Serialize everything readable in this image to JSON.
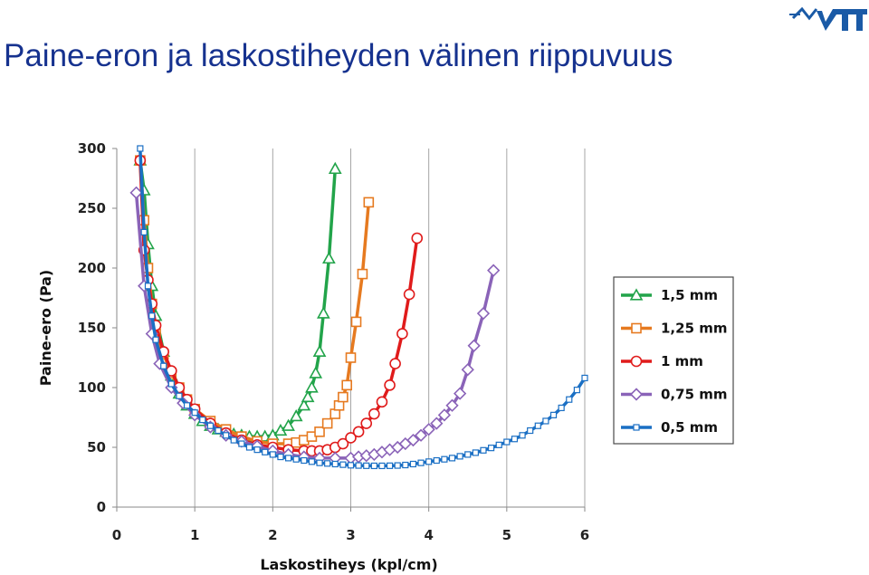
{
  "slide": {
    "title": "Paine-eron ja laskostiheyden välinen riippuvuus"
  },
  "logo": {
    "name": "VTT",
    "color": "#1a5aa6"
  },
  "chart_data": {
    "type": "line",
    "title": "",
    "xlabel": "Laskostiheys (kpl/cm)",
    "ylabel": "Paine-ero (Pa)",
    "xlim": [
      0,
      6
    ],
    "ylim": [
      0,
      300
    ],
    "xticks": [
      0,
      1,
      2,
      3,
      4,
      5,
      6
    ],
    "yticks": [
      0,
      50,
      100,
      150,
      200,
      250,
      300
    ],
    "grid": "vertical",
    "legend_position": "right",
    "series": [
      {
        "name": "1,5 mm",
        "color": "#22a44a",
        "marker": "triangle",
        "x": [
          0.3,
          0.35,
          0.4,
          0.45,
          0.5,
          0.6,
          0.7,
          0.8,
          0.9,
          1.0,
          1.1,
          1.2,
          1.3,
          1.4,
          1.5,
          1.6,
          1.7,
          1.8,
          1.9,
          2.0,
          2.1,
          2.2,
          2.3,
          2.4,
          2.45,
          2.5,
          2.55,
          2.6,
          2.65,
          2.72,
          2.8
        ],
        "y": [
          290,
          265,
          220,
          185,
          160,
          130,
          110,
          95,
          85,
          78,
          72,
          68,
          65,
          63,
          61,
          60,
          59,
          59,
          59,
          60,
          64,
          68,
          76,
          85,
          92,
          100,
          112,
          130,
          162,
          208,
          283
        ]
      },
      {
        "name": "1,25 mm",
        "color": "#e67a20",
        "marker": "square",
        "x": [
          0.3,
          0.35,
          0.4,
          0.45,
          0.5,
          0.6,
          0.7,
          0.8,
          0.9,
          1.0,
          1.2,
          1.4,
          1.6,
          1.8,
          2.0,
          2.2,
          2.3,
          2.4,
          2.5,
          2.6,
          2.7,
          2.8,
          2.85,
          2.9,
          2.95,
          3.0,
          3.07,
          3.15,
          3.23
        ],
        "y": [
          290,
          240,
          200,
          170,
          145,
          128,
          112,
          100,
          90,
          82,
          72,
          65,
          59,
          55,
          53,
          53,
          54,
          56,
          59,
          63,
          70,
          78,
          85,
          92,
          102,
          125,
          155,
          195,
          255
        ]
      },
      {
        "name": "1 mm",
        "color": "#e01b1b",
        "marker": "circle",
        "x": [
          0.3,
          0.35,
          0.4,
          0.45,
          0.5,
          0.6,
          0.7,
          0.8,
          0.9,
          1.0,
          1.2,
          1.4,
          1.6,
          1.8,
          2.0,
          2.2,
          2.4,
          2.5,
          2.6,
          2.7,
          2.8,
          2.9,
          3.0,
          3.1,
          3.2,
          3.3,
          3.4,
          3.5,
          3.57,
          3.66,
          3.75,
          3.85
        ],
        "y": [
          290,
          215,
          190,
          170,
          152,
          130,
          114,
          100,
          90,
          82,
          70,
          62,
          56,
          52,
          50,
          48,
          47,
          47,
          47,
          48,
          50,
          53,
          58,
          63,
          70,
          78,
          88,
          102,
          120,
          145,
          178,
          225
        ]
      },
      {
        "name": "0,75 mm",
        "color": "#8a63b8",
        "marker": "diamond",
        "x": [
          0.25,
          0.35,
          0.45,
          0.55,
          0.7,
          0.85,
          1.0,
          1.2,
          1.4,
          1.6,
          1.8,
          2.0,
          2.2,
          2.4,
          2.6,
          2.8,
          3.0,
          3.1,
          3.2,
          3.3,
          3.4,
          3.5,
          3.6,
          3.7,
          3.8,
          3.9,
          4.0,
          4.1,
          4.2,
          4.3,
          4.4,
          4.5,
          4.58,
          4.7,
          4.83
        ],
        "y": [
          263,
          185,
          145,
          120,
          100,
          87,
          77,
          67,
          60,
          55,
          51,
          47,
          44,
          42,
          41,
          41,
          41,
          42,
          43,
          44,
          46,
          48,
          50,
          53,
          56,
          60,
          65,
          70,
          77,
          85,
          95,
          115,
          135,
          162,
          198
        ]
      },
      {
        "name": "0,5 mm",
        "color": "#1a6fc4",
        "marker": "smallsquare",
        "x": [
          0.3,
          0.35,
          0.4,
          0.45,
          0.5,
          0.6,
          0.7,
          0.8,
          0.9,
          1.0,
          1.1,
          1.2,
          1.3,
          1.4,
          1.5,
          1.6,
          1.7,
          1.8,
          1.9,
          2.0,
          2.1,
          2.2,
          2.3,
          2.4,
          2.5,
          2.6,
          2.7,
          2.8,
          2.9,
          3.0,
          3.1,
          3.2,
          3.3,
          3.4,
          3.5,
          3.6,
          3.7,
          3.8,
          3.9,
          4.0,
          4.1,
          4.2,
          4.3,
          4.4,
          4.5,
          4.6,
          4.7,
          4.8,
          4.9,
          5.0,
          5.1,
          5.2,
          5.3,
          5.4,
          5.5,
          5.6,
          5.7,
          5.8,
          5.9,
          6.0
        ],
        "y": [
          300,
          230,
          185,
          160,
          140,
          118,
          103,
          93,
          85,
          79,
          73,
          68,
          64,
          60,
          56,
          53,
          50,
          48,
          46,
          44,
          42,
          41,
          40,
          39,
          38,
          37,
          36.5,
          36,
          35.5,
          35,
          34.8,
          34.6,
          34.5,
          34.5,
          34.6,
          34.8,
          35.2,
          36,
          37,
          38,
          39,
          40,
          41,
          42.5,
          44,
          45.5,
          47.5,
          49.5,
          52,
          54.5,
          57,
          60,
          64,
          68,
          72,
          77,
          83,
          90,
          98,
          108
        ]
      }
    ]
  }
}
